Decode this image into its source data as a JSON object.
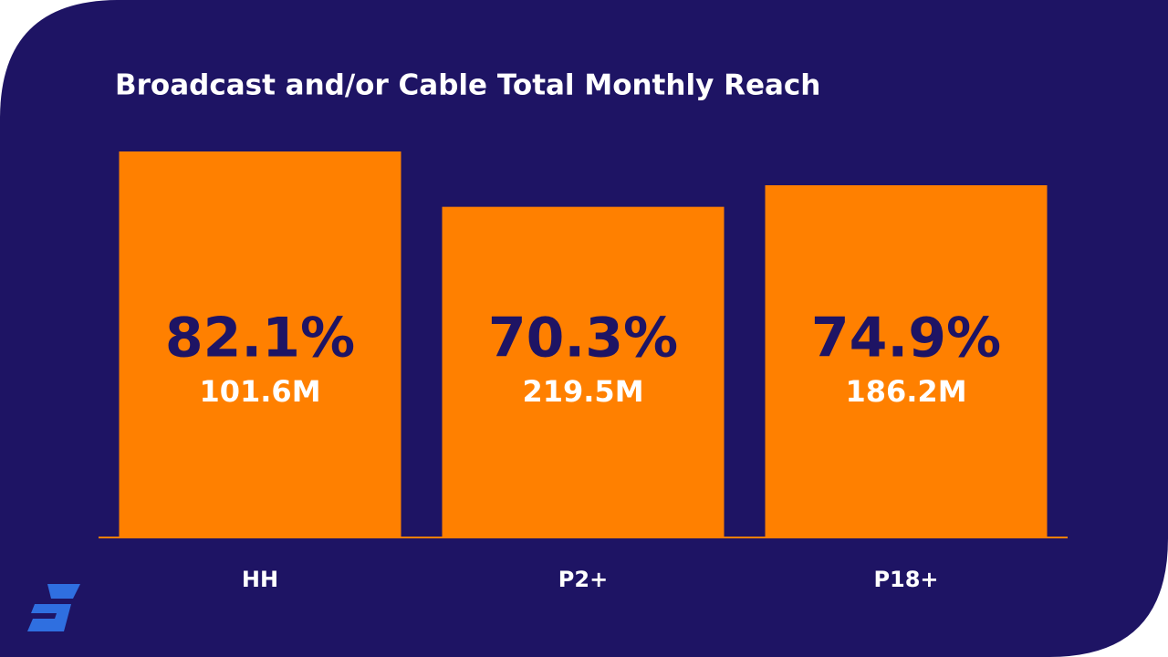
{
  "chart_data": {
    "type": "bar",
    "title": "Broadcast and/or Cable Total Monthly Reach",
    "categories": [
      "HH",
      "P2+",
      "P18+"
    ],
    "values": [
      82.1,
      70.3,
      74.9
    ],
    "value_labels": [
      "82.1%",
      "70.3%",
      "74.9%"
    ],
    "sublabels": [
      "101.6M",
      "219.5M",
      "186.2M"
    ],
    "color": "#ff8000",
    "ylim": [
      0,
      100
    ]
  }
}
